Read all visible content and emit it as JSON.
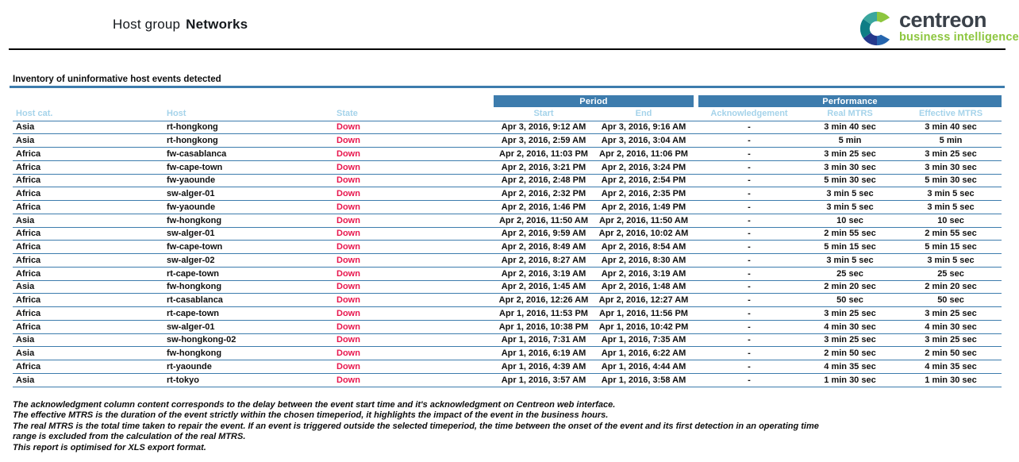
{
  "page": {
    "title_prefix": "Host group",
    "title_name": "Networks"
  },
  "logo": {
    "brand": "centreon",
    "tagline": "business intelligence"
  },
  "section": {
    "heading": "Inventory of uninformative host events detected"
  },
  "table": {
    "group_headers": {
      "period": "Period",
      "performance": "Performance"
    },
    "columns": [
      "Host cat.",
      "Host",
      "State",
      "Start",
      "End",
      "Acknowledgement",
      "Real MTRS",
      "Effective MTRS"
    ],
    "rows": [
      [
        "Asia",
        "rt-hongkong",
        "Down",
        "Apr 3, 2016, 9:12 AM",
        "Apr 3, 2016, 9:16 AM",
        "-",
        "3 min 40 sec",
        "3 min 40 sec"
      ],
      [
        "Asia",
        "rt-hongkong",
        "Down",
        "Apr 3, 2016, 2:59 AM",
        "Apr 3, 2016, 3:04 AM",
        "-",
        "5 min",
        "5 min"
      ],
      [
        "Africa",
        "fw-casablanca",
        "Down",
        "Apr 2, 2016, 11:03 PM",
        "Apr 2, 2016, 11:06 PM",
        "-",
        "3 min 25 sec",
        "3 min 25 sec"
      ],
      [
        "Africa",
        "fw-cape-town",
        "Down",
        "Apr 2, 2016, 3:21 PM",
        "Apr 2, 2016, 3:24 PM",
        "-",
        "3 min 30 sec",
        "3 min 30 sec"
      ],
      [
        "Africa",
        "fw-yaounde",
        "Down",
        "Apr 2, 2016, 2:48 PM",
        "Apr 2, 2016, 2:54 PM",
        "-",
        "5 min 30 sec",
        "5 min 30 sec"
      ],
      [
        "Africa",
        "sw-alger-01",
        "Down",
        "Apr 2, 2016, 2:32 PM",
        "Apr 2, 2016, 2:35 PM",
        "-",
        "3 min 5 sec",
        "3 min 5 sec"
      ],
      [
        "Africa",
        "fw-yaounde",
        "Down",
        "Apr 2, 2016, 1:46 PM",
        "Apr 2, 2016, 1:49 PM",
        "-",
        "3 min 5 sec",
        "3 min 5 sec"
      ],
      [
        "Asia",
        "fw-hongkong",
        "Down",
        "Apr 2, 2016, 11:50 AM",
        "Apr 2, 2016, 11:50 AM",
        "-",
        "10 sec",
        "10 sec"
      ],
      [
        "Africa",
        "sw-alger-01",
        "Down",
        "Apr 2, 2016, 9:59 AM",
        "Apr 2, 2016, 10:02 AM",
        "-",
        "2 min 55 sec",
        "2 min 55 sec"
      ],
      [
        "Africa",
        "fw-cape-town",
        "Down",
        "Apr 2, 2016, 8:49 AM",
        "Apr 2, 2016, 8:54 AM",
        "-",
        "5 min 15 sec",
        "5 min 15 sec"
      ],
      [
        "Africa",
        "sw-alger-02",
        "Down",
        "Apr 2, 2016, 8:27 AM",
        "Apr 2, 2016, 8:30 AM",
        "-",
        "3 min 5 sec",
        "3 min 5 sec"
      ],
      [
        "Africa",
        "rt-cape-town",
        "Down",
        "Apr 2, 2016, 3:19 AM",
        "Apr 2, 2016, 3:19 AM",
        "-",
        "25 sec",
        "25 sec"
      ],
      [
        "Asia",
        "fw-hongkong",
        "Down",
        "Apr 2, 2016, 1:45 AM",
        "Apr 2, 2016, 1:48 AM",
        "-",
        "2 min 20 sec",
        "2 min 20 sec"
      ],
      [
        "Africa",
        "rt-casablanca",
        "Down",
        "Apr 2, 2016, 12:26 AM",
        "Apr 2, 2016, 12:27 AM",
        "-",
        "50 sec",
        "50 sec"
      ],
      [
        "Africa",
        "rt-cape-town",
        "Down",
        "Apr 1, 2016, 11:53 PM",
        "Apr 1, 2016, 11:56 PM",
        "-",
        "3 min 25 sec",
        "3 min 25 sec"
      ],
      [
        "Africa",
        "sw-alger-01",
        "Down",
        "Apr 1, 2016, 10:38 PM",
        "Apr 1, 2016, 10:42 PM",
        "-",
        "4 min 30 sec",
        "4 min 30 sec"
      ],
      [
        "Asia",
        "sw-hongkong-02",
        "Down",
        "Apr 1, 2016, 7:31 AM",
        "Apr 1, 2016, 7:35 AM",
        "-",
        "3 min 25 sec",
        "3 min 25 sec"
      ],
      [
        "Asia",
        "fw-hongkong",
        "Down",
        "Apr 1, 2016, 6:19 AM",
        "Apr 1, 2016, 6:22 AM",
        "-",
        "2 min 50 sec",
        "2 min 50 sec"
      ],
      [
        "Africa",
        "rt-yaounde",
        "Down",
        "Apr 1, 2016, 4:39 AM",
        "Apr 1, 2016, 4:44 AM",
        "-",
        "4 min 35 sec",
        "4 min 35 sec"
      ],
      [
        "Asia",
        "rt-tokyo",
        "Down",
        "Apr 1, 2016, 3:57 AM",
        "Apr 1, 2016, 3:58 AM",
        "-",
        "1 min 30 sec",
        "1 min 30 sec"
      ]
    ]
  },
  "footnotes": {
    "lines": [
      "The acknowledgment column content corresponds to the delay between the event start time and it's acknowledgment on Centreon web interface.",
      "The effective MTRS is the duration of the event strictly within the chosen timeperiod, it highlights the impact of the event in the business hours.",
      "The real MTRS is the total time taken to repair the event. If an event is triggered outside the selected timeperiod, the time between the onset of the event and its first detection in an operating time",
      "range  is excluded from the calculation of the real MTRS.",
      "This report is optimised for XLS export format."
    ]
  },
  "colors": {
    "accent_blue": "#3d7cad",
    "column_header_text": "#a5d3ea",
    "state_down_red": "#e8174e",
    "logo_green": "#8dc63f",
    "logo_teal": "#3aa69e",
    "logo_dark_teal": "#0e7d85",
    "logo_navy": "#24388c",
    "logo_blue": "#2565ae",
    "logo_slate": "#3a4149",
    "text": "#111111"
  }
}
